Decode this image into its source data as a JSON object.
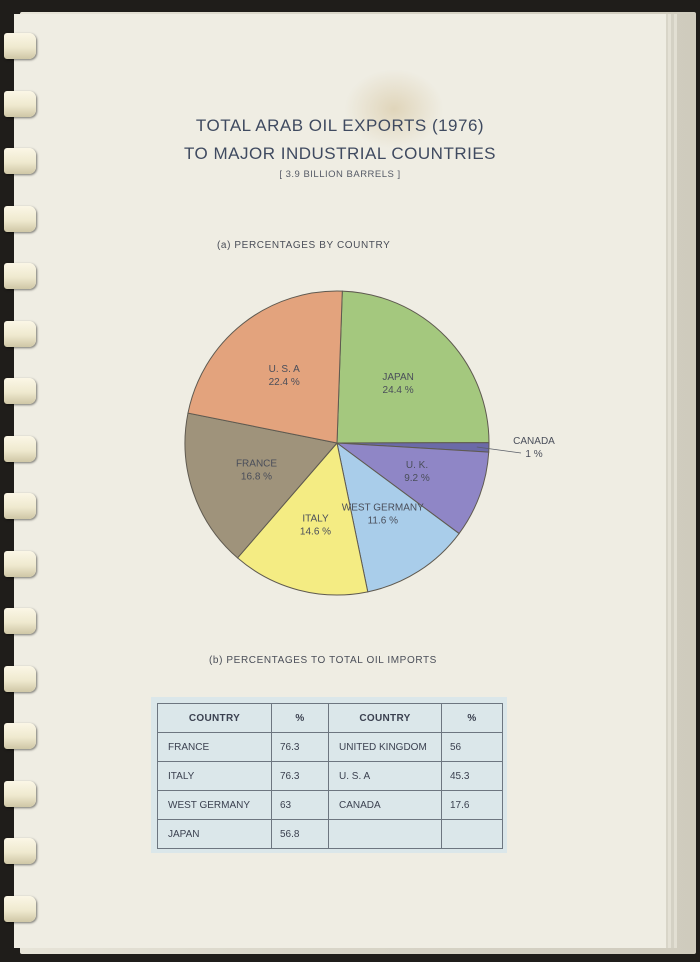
{
  "document": {
    "title_line1": "TOTAL ARAB OIL EXPORTS (1976)",
    "title_line2": "TO MAJOR INDUSTRIAL COUNTRIES",
    "subtitle": "[ 3.9 BILLION BARRELS ]",
    "section_a_label": "(a)  PERCENTAGES BY COUNTRY",
    "section_b_label": "(b)  PERCENTAGES TO TOTAL OIL IMPORTS"
  },
  "chart_data": [
    {
      "type": "pie",
      "title": "(a) PERCENTAGES BY COUNTRY",
      "unit": "%",
      "slices": [
        {
          "label": "JAPAN",
          "value": 24.4,
          "value_label": "24.4 %",
          "color": "#a4c87e"
        },
        {
          "label": "CANADA",
          "value": 1,
          "value_label": "1 %",
          "color": "#6b6aa8"
        },
        {
          "label": "U. K.",
          "value": 9.2,
          "value_label": "9.2 %",
          "color": "#8f86c6"
        },
        {
          "label": "WEST GERMANY",
          "value": 11.6,
          "value_label": "11.6 %",
          "color": "#a9cdea"
        },
        {
          "label": "ITALY",
          "value": 14.6,
          "value_label": "14.6 %",
          "color": "#f4ec83"
        },
        {
          "label": "FRANCE",
          "value": 16.8,
          "value_label": "16.8 %",
          "color": "#9f937b"
        },
        {
          "label": "U. S. A",
          "value": 22.4,
          "value_label": "22.4 %",
          "color": "#e3a37d"
        }
      ]
    },
    {
      "type": "table",
      "title": "(b) PERCENTAGES TO TOTAL OIL IMPORTS",
      "columns": [
        "COUNTRY",
        "%",
        "COUNTRY",
        "%"
      ],
      "rows": [
        [
          "FRANCE",
          "76.3",
          "UNITED KINGDOM",
          "56"
        ],
        [
          "ITALY",
          "76.3",
          "U.  S.  A",
          "45.3"
        ],
        [
          "WEST  GERMANY",
          "63",
          "CANADA",
          "17.6"
        ],
        [
          "JAPAN",
          "56.8",
          "",
          ""
        ]
      ]
    }
  ]
}
